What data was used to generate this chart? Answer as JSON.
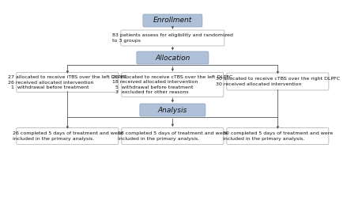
{
  "background_color": "#ffffff",
  "header_box_color": "#afc1d8",
  "header_box_edge": "#8aa0bc",
  "content_box_color": "#ffffff",
  "content_box_edge": "#aaaaaa",
  "arrow_color": "#555555",
  "text_color": "#111111",
  "header_fontsize": 6.5,
  "content_fontsize": 4.5,
  "enrollment_label": "Enrollment",
  "enroll_text_label": "83 patients assess for eligibility and randomized\nto 3 groups",
  "allocation_label": "Allocation",
  "left_alloc_label": "27 allocated to receive iTBS over the left DLPFC\n26 received allocated intervention\n  1  withdrawal before treatment",
  "mid_alloc_label": "26 allocated to receive cTBS over the left DLPFC\n18 received allocated intervention\n  5  withdrawal before treatment\n  3  excluded for other reasons",
  "right_alloc_label": "30 allocated to receive cTBS over the right DLPFC\n30 received allocated intervention",
  "analysis_label": "Analysis",
  "left_anal_label": "26 completed 5 days of treatment and were\nincluded in the primary analysis.",
  "mid_anal_label": "18 completed 5 days of treatment and were\nincluded in the primary analysis.",
  "right_anal_label": "30 completed 5 days of treatment and were\nincluded in the primary analysis."
}
